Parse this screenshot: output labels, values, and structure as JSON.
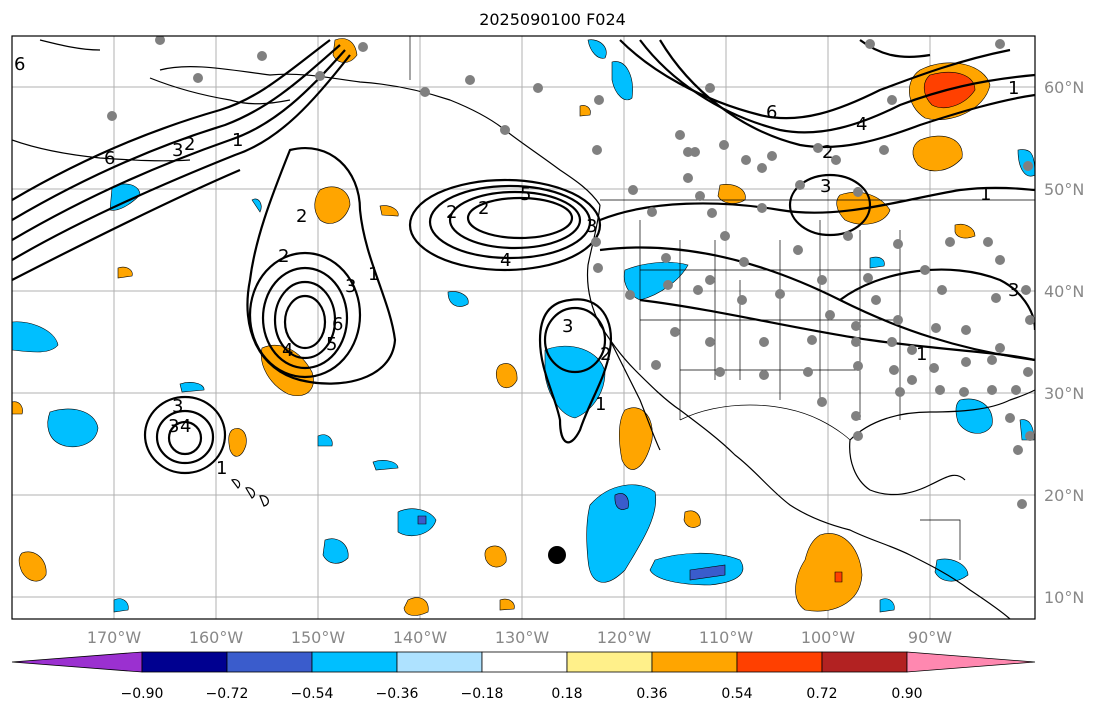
{
  "title": "2025090100 F024",
  "lon_labels": [
    "170°W",
    "160°W",
    "150°W",
    "140°W",
    "130°W",
    "120°W",
    "110°W",
    "100°W",
    "90°W"
  ],
  "lat_labels": [
    "60°N",
    "50°N",
    "40°N",
    "30°N",
    "20°N",
    "10°N"
  ],
  "colorbar": {
    "ticks": [
      "−0.90",
      "−0.72",
      "−0.54",
      "−0.36",
      "−0.18",
      "0.18",
      "0.36",
      "0.54",
      "0.72",
      "0.90"
    ],
    "colors": [
      "#9b30d0",
      "#000090",
      "#3a5ccc",
      "#00bfff",
      "#aee2ff",
      "#ffffff",
      "#fff08a",
      "#ffa500",
      "#ff4000",
      "#b22222",
      "#ff88b0"
    ]
  },
  "contour_labels": [
    "6",
    "3",
    "2",
    "1",
    "2",
    "5",
    "3",
    "1",
    "6",
    "4",
    "2",
    "3",
    "3",
    "2",
    "1",
    "6",
    "4",
    "2",
    "5",
    "6",
    "4",
    "3",
    "1",
    "2",
    "3",
    "1",
    "3",
    "2",
    "4",
    "1",
    "3",
    "1"
  ],
  "colors": {
    "land_line": "#000000",
    "grid": "#b0b0b0",
    "station": "#808080",
    "warm": "#ffa500",
    "hot": "#ff4000",
    "cool": "#00bfff",
    "cold": "#3a5ccc"
  }
}
